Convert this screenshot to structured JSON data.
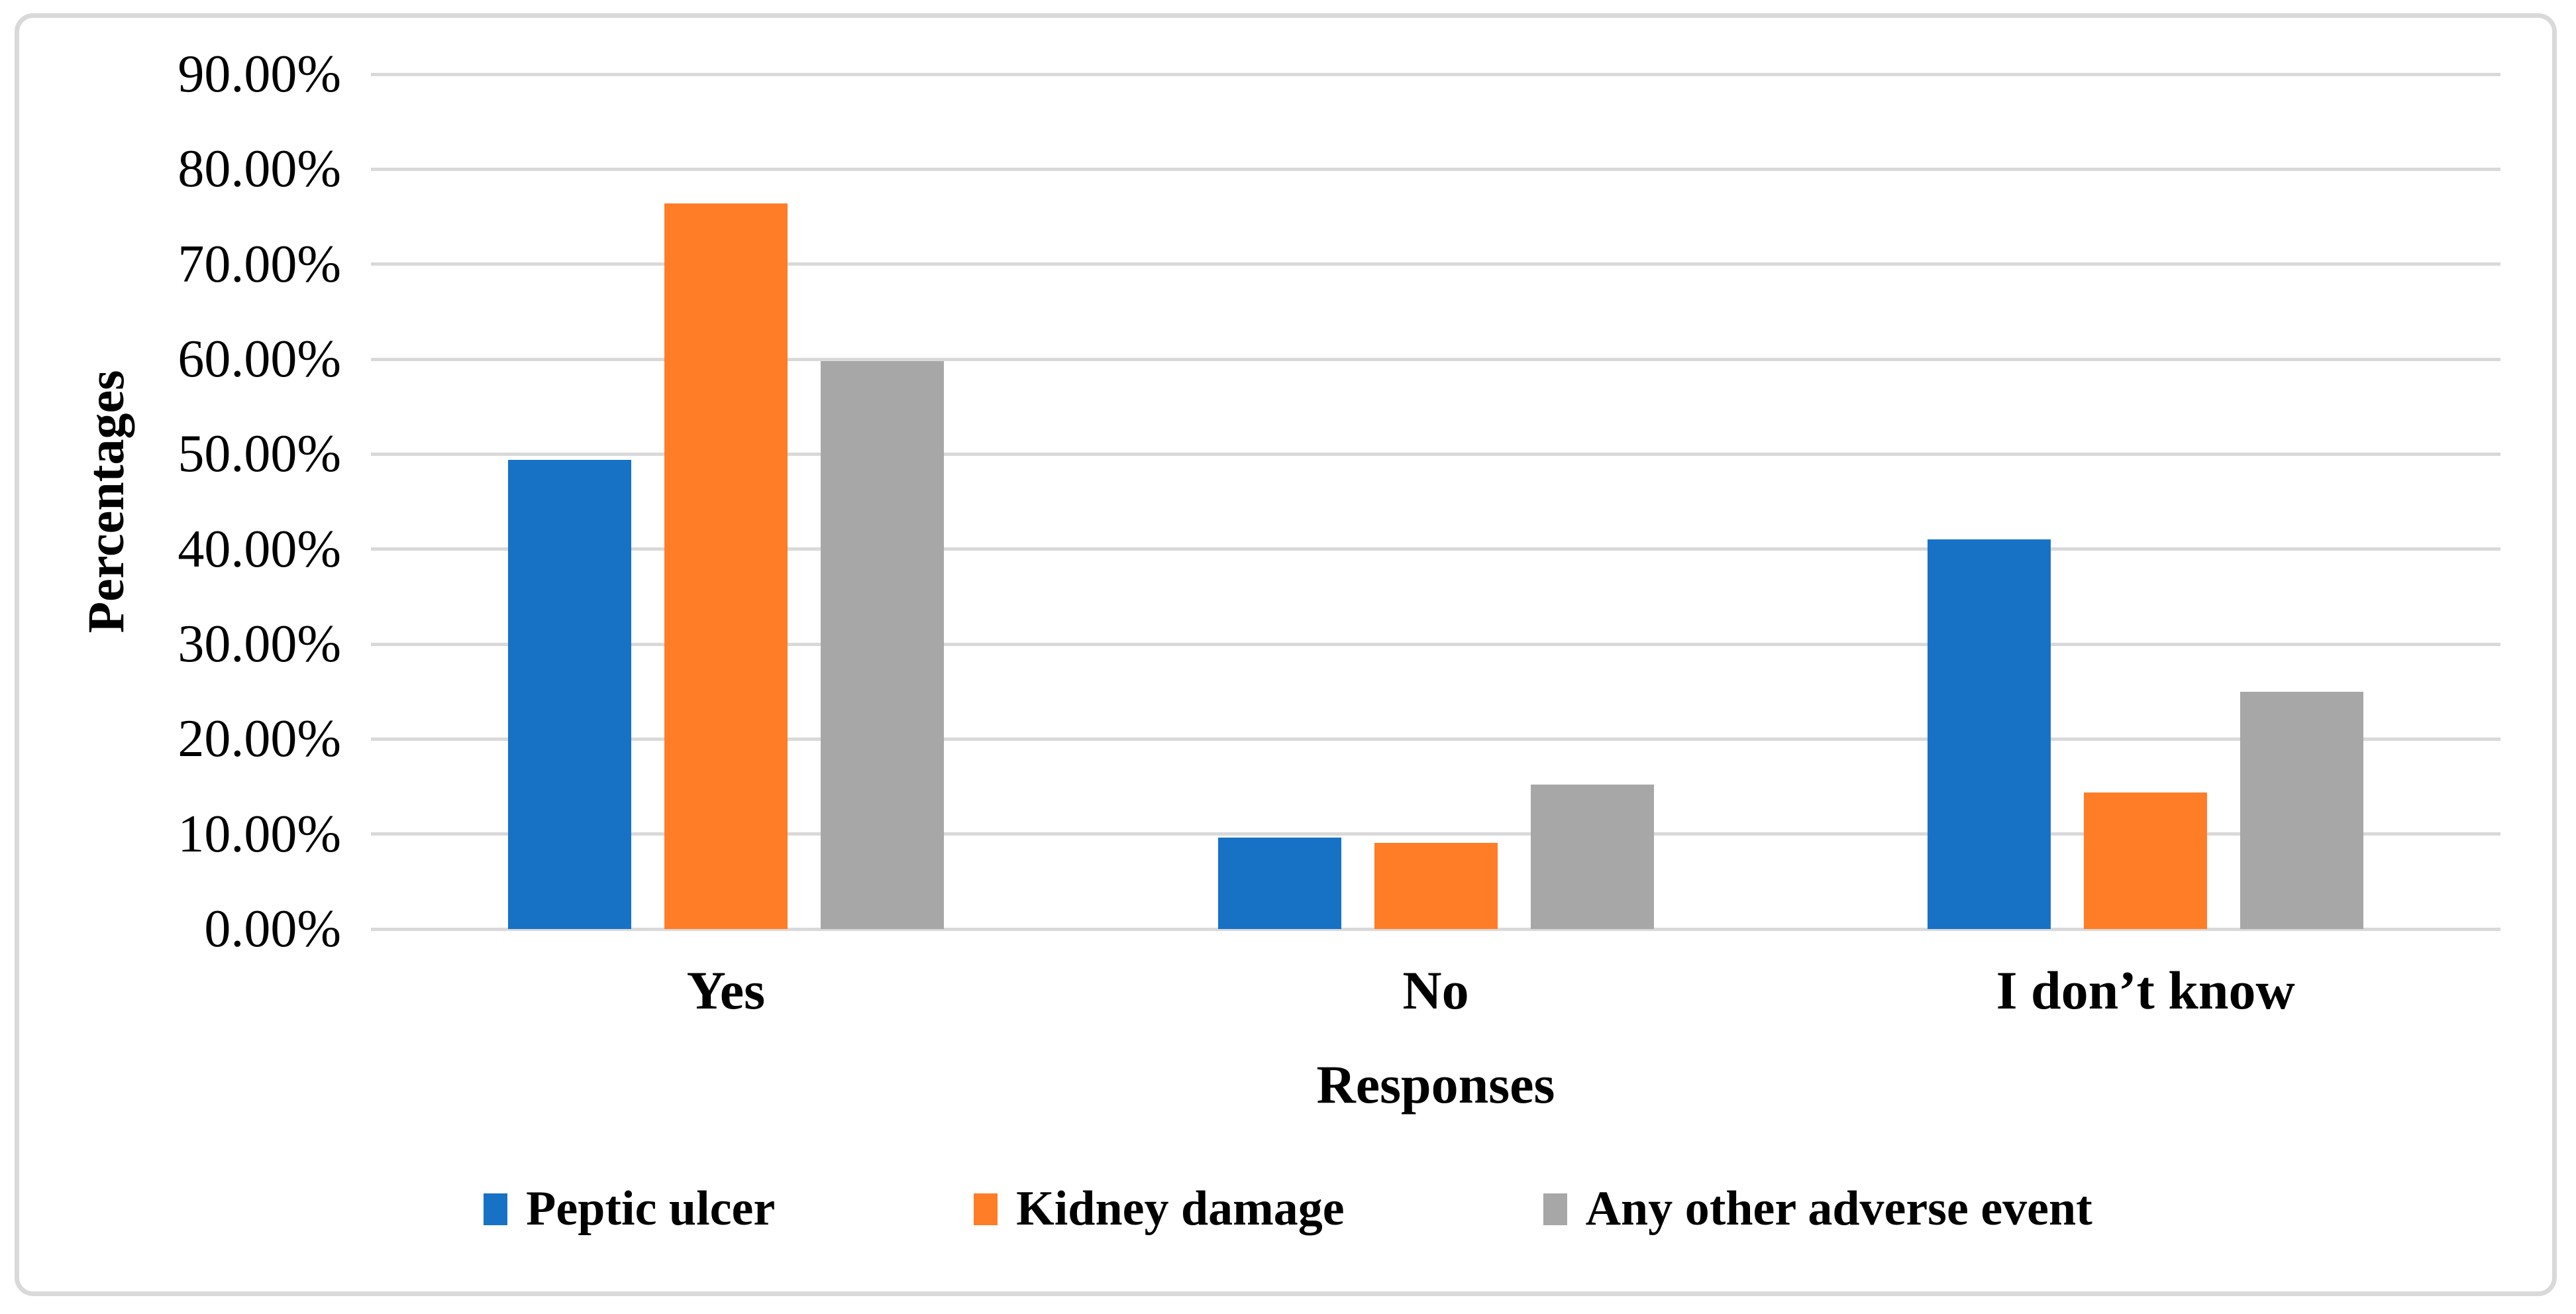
{
  "chart_data": {
    "type": "bar",
    "title": "",
    "categories": [
      "Yes",
      "No",
      "I don’t know"
    ],
    "series": [
      {
        "name": "Peptic ulcer",
        "color": "#1772C6",
        "values": [
          49.4,
          9.6,
          41.0
        ]
      },
      {
        "name": "Kidney damage",
        "color": "#FF7D27",
        "values": [
          76.4,
          9.1,
          14.4
        ]
      },
      {
        "name": "Any other adverse event",
        "color": "#A7A7A7",
        "values": [
          59.8,
          15.2,
          25.0
        ]
      }
    ],
    "xlabel": "Responses",
    "ylabel": "Percentages",
    "ylim": [
      0,
      90
    ],
    "ytick_step": 10,
    "y_ticks": [
      "0.00%",
      "10.00%",
      "20.00%",
      "30.00%",
      "40.00%",
      "50.00%",
      "60.00%",
      "70.00%",
      "80.00%",
      "90.00%"
    ],
    "grid": true,
    "legend_position": "bottom"
  },
  "colors": {
    "gridline": "#D9D9D9",
    "frame_border": "#D9D9D9",
    "background": "#FFFFFF",
    "text": "#000000"
  }
}
